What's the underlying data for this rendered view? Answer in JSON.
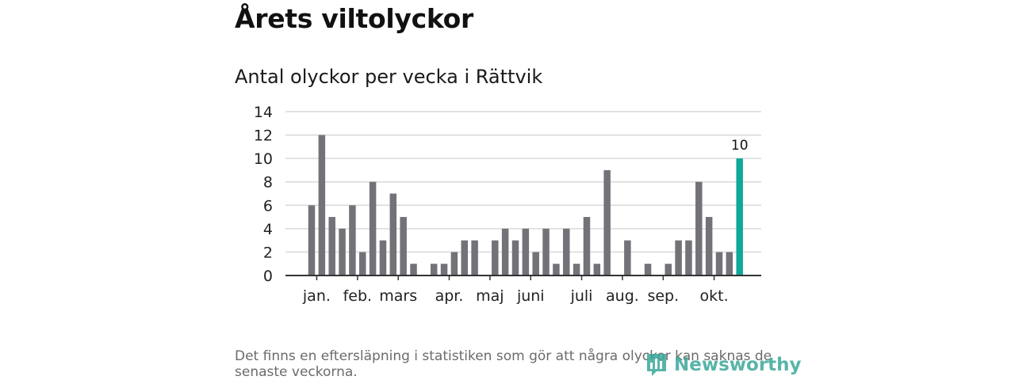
{
  "title": "Årets viltolyckor",
  "subtitle": "Antal olyckor per vecka i Rättvik",
  "footnote": "Det finns en eftersläpning i statistiken som gör att några olyckor kan saknas de senaste veckorna.",
  "logo_text": "Newsworthy",
  "colors": {
    "bar": "#737278",
    "highlight": "#0fa89a",
    "grid": "#d9d9d9",
    "axis": "#333333",
    "logo": "#3aa89a"
  },
  "chart_data": {
    "type": "bar",
    "title": "Antal olyckor per vecka i Rättvik",
    "xlabel": "",
    "ylabel": "",
    "ylim": [
      0,
      14
    ],
    "yticks": [
      0,
      2,
      4,
      6,
      8,
      10,
      12,
      14
    ],
    "weeks": [
      1,
      2,
      3,
      4,
      5,
      6,
      7,
      8,
      9,
      10,
      11,
      12,
      13,
      14,
      15,
      16,
      17,
      18,
      19,
      20,
      21,
      22,
      23,
      24,
      25,
      26,
      27,
      28,
      29,
      30,
      31,
      32,
      33,
      34,
      35,
      36,
      37,
      38,
      39,
      40,
      41,
      42,
      43
    ],
    "values": [
      6,
      12,
      5,
      4,
      6,
      2,
      8,
      3,
      7,
      5,
      1,
      0,
      1,
      1,
      2,
      3,
      3,
      0,
      3,
      4,
      3,
      4,
      2,
      4,
      1,
      4,
      1,
      5,
      1,
      9,
      0,
      3,
      0,
      1,
      0,
      1,
      3,
      3,
      8,
      5,
      2,
      2,
      10
    ],
    "highlight_last": true,
    "highlight_label": "10",
    "month_labels": [
      {
        "label": "jan.",
        "week": 1.5
      },
      {
        "label": "feb.",
        "week": 5.5
      },
      {
        "label": "mars",
        "week": 9.5
      },
      {
        "label": "apr.",
        "week": 14.5
      },
      {
        "label": "maj",
        "week": 18.5
      },
      {
        "label": "juni",
        "week": 22.5
      },
      {
        "label": "juli",
        "week": 27.5
      },
      {
        "label": "aug.",
        "week": 31.5
      },
      {
        "label": "sep.",
        "week": 35.5
      },
      {
        "label": "okt.",
        "week": 40.5
      }
    ]
  }
}
